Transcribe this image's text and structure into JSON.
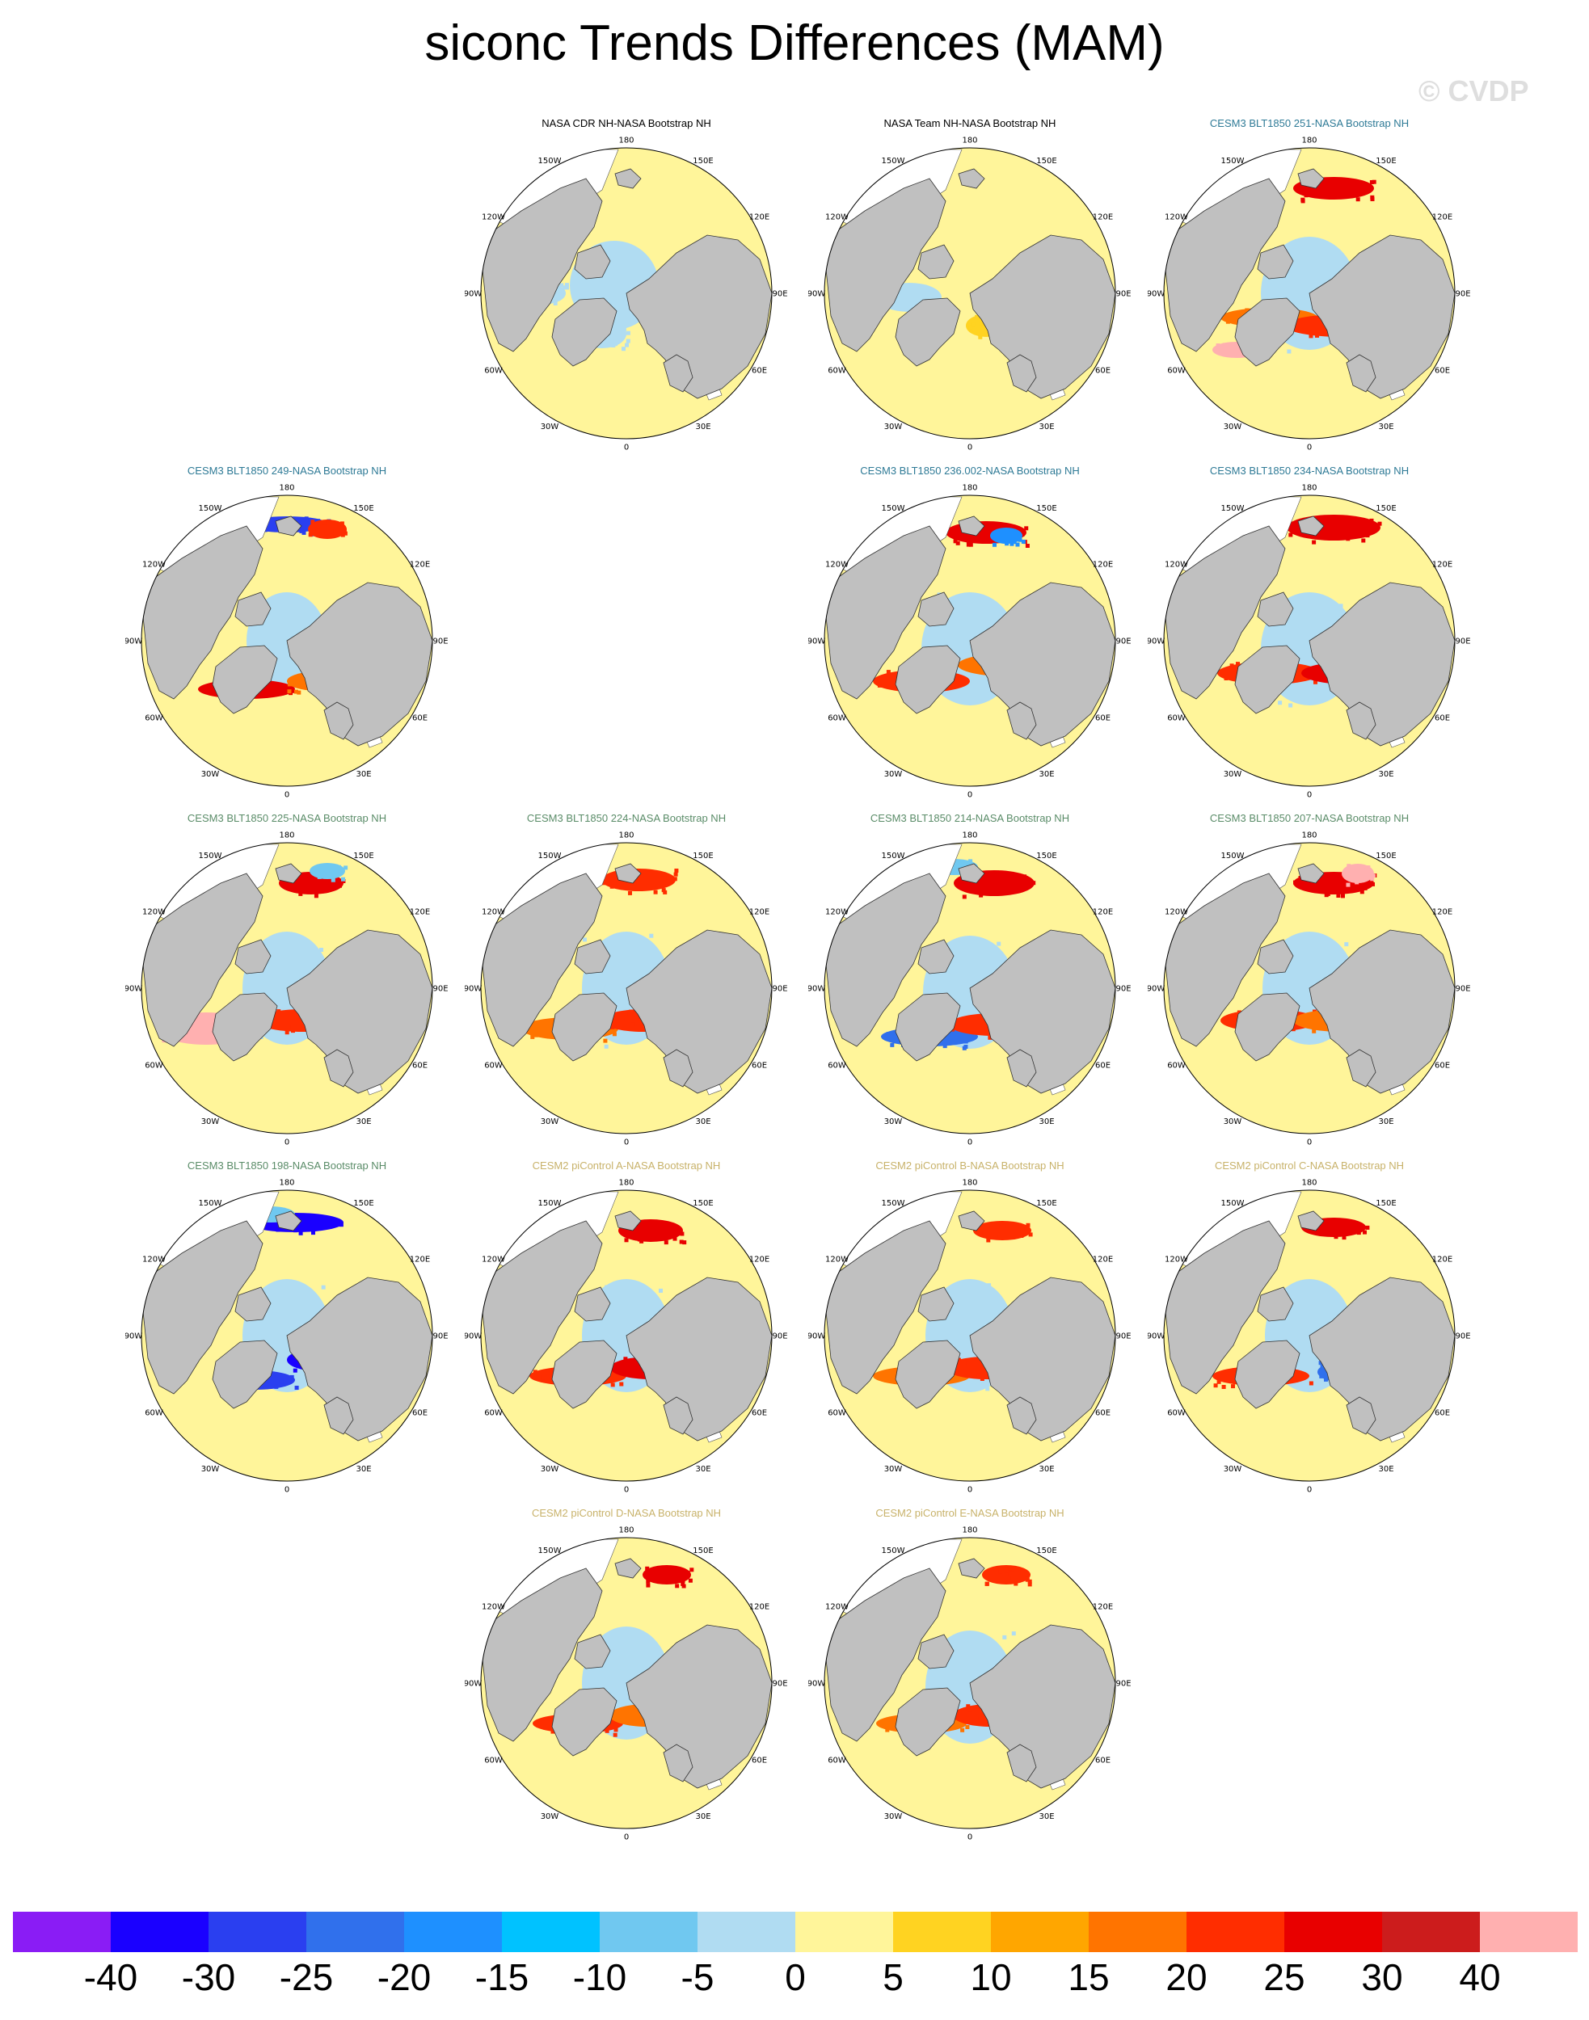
{
  "title": "siconc Trends Differences (MAM)",
  "watermark": "© CVDP",
  "panel_labels": [
    "180",
    "150E",
    "120E",
    "90E",
    "60E",
    "30E",
    "0",
    "30W",
    "60W",
    "90W",
    "120W",
    "150W"
  ],
  "colors": {
    "cesm3_blue": "#2e7a96",
    "cesm3_green": "#5a8c68",
    "cesm2_tan": "#c8b26a",
    "land": "#c0c0c0",
    "unmasked": "#ffffff",
    "ocean_base": "#fff59a"
  },
  "panels": [
    {
      "title": "NASA CDR NH-NASA Bootstrap NH",
      "title_color": "#000000",
      "mode": "obs1"
    },
    {
      "title": "NASA Team NH-NASA Bootstrap NH",
      "title_color": "#000000",
      "mode": "obs2"
    },
    {
      "title": "CESM3 BLT1850 251-NASA Bootstrap NH",
      "title_color": "#2e7a96",
      "mode": "m1"
    },
    {
      "title": "CESM3 BLT1850 249-NASA Bootstrap NH",
      "title_color": "#2e7a96",
      "mode": "m2"
    },
    {
      "title": "CESM3 BLT1850 236.002-NASA Bootstrap NH",
      "title_color": "#2e7a96",
      "mode": "m3"
    },
    {
      "title": "CESM3 BLT1850 234-NASA Bootstrap NH",
      "title_color": "#2e7a96",
      "mode": "m4"
    },
    {
      "title": "CESM3 BLT1850 225-NASA Bootstrap NH",
      "title_color": "#5a8c68",
      "mode": "m5"
    },
    {
      "title": "CESM3 BLT1850 224-NASA Bootstrap NH",
      "title_color": "#5a8c68",
      "mode": "m6"
    },
    {
      "title": "CESM3 BLT1850 214-NASA Bootstrap NH",
      "title_color": "#5a8c68",
      "mode": "m7"
    },
    {
      "title": "CESM3 BLT1850 207-NASA Bootstrap NH",
      "title_color": "#5a8c68",
      "mode": "m8"
    },
    {
      "title": "CESM3 BLT1850 198-NASA Bootstrap NH",
      "title_color": "#5a8c68",
      "mode": "m9"
    },
    {
      "title": "CESM2 piControl A-NASA Bootstrap NH",
      "title_color": "#c8b26a",
      "mode": "m10"
    },
    {
      "title": "CESM2 piControl B-NASA Bootstrap NH",
      "title_color": "#c8b26a",
      "mode": "m11"
    },
    {
      "title": "CESM2 piControl C-NASA Bootstrap NH",
      "title_color": "#c8b26a",
      "mode": "m12"
    },
    {
      "title": "CESM2 piControl D-NASA Bootstrap NH",
      "title_color": "#c8b26a",
      "mode": "m13"
    },
    {
      "title": "CESM2 piControl E-NASA Bootstrap NH",
      "title_color": "#c8b26a",
      "mode": "m14"
    }
  ],
  "colorbar": {
    "labels": [
      "-40",
      "-30",
      "-25",
      "-20",
      "-15",
      "-10",
      "-5",
      "0",
      "5",
      "10",
      "15",
      "20",
      "25",
      "30",
      "40"
    ],
    "colors": [
      "#8a1cf5",
      "#1a00ff",
      "#2a3ff0",
      "#3070ec",
      "#1e90ff",
      "#00c2ff",
      "#70c8f0",
      "#b0dcf2",
      "#fff59a",
      "#ffd321",
      "#ffa600",
      "#ff7400",
      "#ff2d00",
      "#e80000",
      "#cc1c1c",
      "#ffb0b0"
    ]
  }
}
